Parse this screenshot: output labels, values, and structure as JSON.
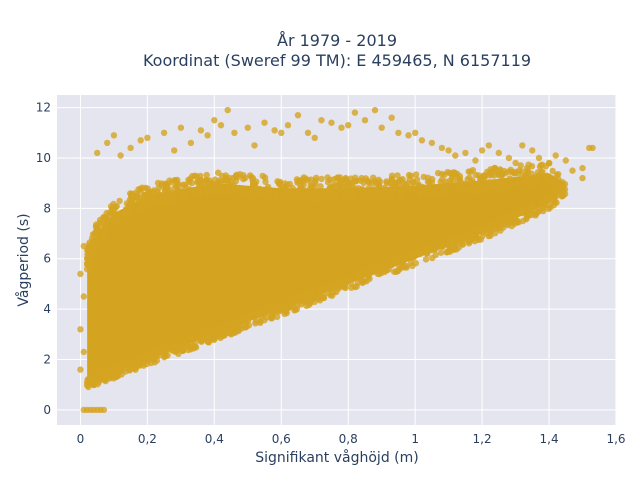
{
  "chart_data": {
    "type": "scatter",
    "title_line1": "År 1979 - 2019",
    "title_line2": "Koordinat (Sweref 99 TM): E 459465, N 6157119",
    "xlabel": "Signifikant våghöjd (m)",
    "ylabel": "Vågperiod (s)",
    "xlim": [
      -0.07,
      1.6
    ],
    "ylim": [
      -0.6,
      12.5
    ],
    "x_ticks": [
      0,
      0.2,
      0.4,
      0.6,
      0.8,
      1,
      1.2,
      1.4,
      1.6
    ],
    "x_tick_labels": [
      "0",
      "0,2",
      "0,4",
      "0,6",
      "0,8",
      "1",
      "1,2",
      "1,4",
      "1,6"
    ],
    "y_ticks": [
      0,
      2,
      4,
      6,
      8,
      10,
      12
    ],
    "y_tick_labels": [
      "0",
      "2",
      "4",
      "6",
      "8",
      "10",
      "12"
    ],
    "grid": true,
    "marker_color": "#D4A420",
    "plot_bg": "#E5E5EF",
    "dense_region": {
      "lower_edge": [
        [
          0.02,
          1.1
        ],
        [
          0.1,
          1.5
        ],
        [
          0.2,
          2.0
        ],
        [
          0.3,
          2.5
        ],
        [
          0.4,
          3.0
        ],
        [
          0.6,
          4.0
        ],
        [
          0.8,
          5.0
        ],
        [
          1.0,
          6.0
        ],
        [
          1.2,
          7.0
        ],
        [
          1.4,
          8.2
        ],
        [
          1.45,
          8.8
        ]
      ],
      "upper_edge": [
        [
          0.02,
          6.0
        ],
        [
          0.05,
          7.0
        ],
        [
          0.1,
          7.8
        ],
        [
          0.2,
          8.5
        ],
        [
          0.4,
          9.0
        ],
        [
          0.6,
          8.8
        ],
        [
          0.8,
          8.8
        ],
        [
          1.0,
          8.9
        ],
        [
          1.2,
          9.1
        ],
        [
          1.4,
          9.4
        ],
        [
          1.45,
          9.0
        ]
      ]
    },
    "outlier_points": [
      [
        0.01,
        0
      ],
      [
        0.02,
        0
      ],
      [
        0.03,
        0
      ],
      [
        0.04,
        0
      ],
      [
        0.05,
        0
      ],
      [
        0.06,
        0
      ],
      [
        0.07,
        0
      ],
      [
        0.0,
        1.6
      ],
      [
        0.01,
        2.3
      ],
      [
        0.0,
        3.2
      ],
      [
        0.01,
        4.5
      ],
      [
        0.0,
        5.4
      ],
      [
        0.01,
        6.5
      ],
      [
        0.05,
        10.2
      ],
      [
        0.08,
        10.6
      ],
      [
        0.1,
        10.9
      ],
      [
        0.12,
        10.1
      ],
      [
        0.15,
        10.4
      ],
      [
        0.18,
        10.7
      ],
      [
        0.2,
        10.8
      ],
      [
        0.25,
        11.0
      ],
      [
        0.28,
        10.3
      ],
      [
        0.3,
        11.2
      ],
      [
        0.33,
        10.6
      ],
      [
        0.36,
        11.1
      ],
      [
        0.38,
        10.9
      ],
      [
        0.4,
        11.5
      ],
      [
        0.42,
        11.3
      ],
      [
        0.44,
        11.9
      ],
      [
        0.46,
        11.0
      ],
      [
        0.5,
        11.2
      ],
      [
        0.52,
        10.5
      ],
      [
        0.55,
        11.4
      ],
      [
        0.58,
        11.1
      ],
      [
        0.6,
        11.0
      ],
      [
        0.62,
        11.3
      ],
      [
        0.65,
        11.7
      ],
      [
        0.68,
        11.0
      ],
      [
        0.7,
        10.8
      ],
      [
        0.72,
        11.5
      ],
      [
        0.75,
        11.4
      ],
      [
        0.78,
        11.2
      ],
      [
        0.8,
        11.3
      ],
      [
        0.82,
        11.8
      ],
      [
        0.85,
        11.5
      ],
      [
        0.88,
        11.9
      ],
      [
        0.9,
        11.2
      ],
      [
        0.93,
        11.6
      ],
      [
        0.95,
        11.0
      ],
      [
        0.98,
        10.9
      ],
      [
        1.0,
        11.0
      ],
      [
        1.02,
        10.7
      ],
      [
        1.05,
        10.6
      ],
      [
        1.08,
        10.4
      ],
      [
        1.1,
        10.3
      ],
      [
        1.12,
        10.1
      ],
      [
        1.15,
        10.2
      ],
      [
        1.18,
        9.9
      ],
      [
        1.2,
        10.3
      ],
      [
        1.22,
        10.5
      ],
      [
        1.25,
        10.2
      ],
      [
        1.28,
        10.0
      ],
      [
        1.3,
        9.8
      ],
      [
        1.32,
        10.5
      ],
      [
        1.35,
        10.3
      ],
      [
        1.37,
        10.0
      ],
      [
        1.4,
        9.8
      ],
      [
        1.42,
        10.1
      ],
      [
        1.45,
        9.9
      ],
      [
        1.47,
        9.5
      ],
      [
        1.5,
        9.6
      ],
      [
        1.52,
        10.4
      ],
      [
        1.53,
        10.4
      ],
      [
        1.5,
        9.2
      ]
    ]
  }
}
